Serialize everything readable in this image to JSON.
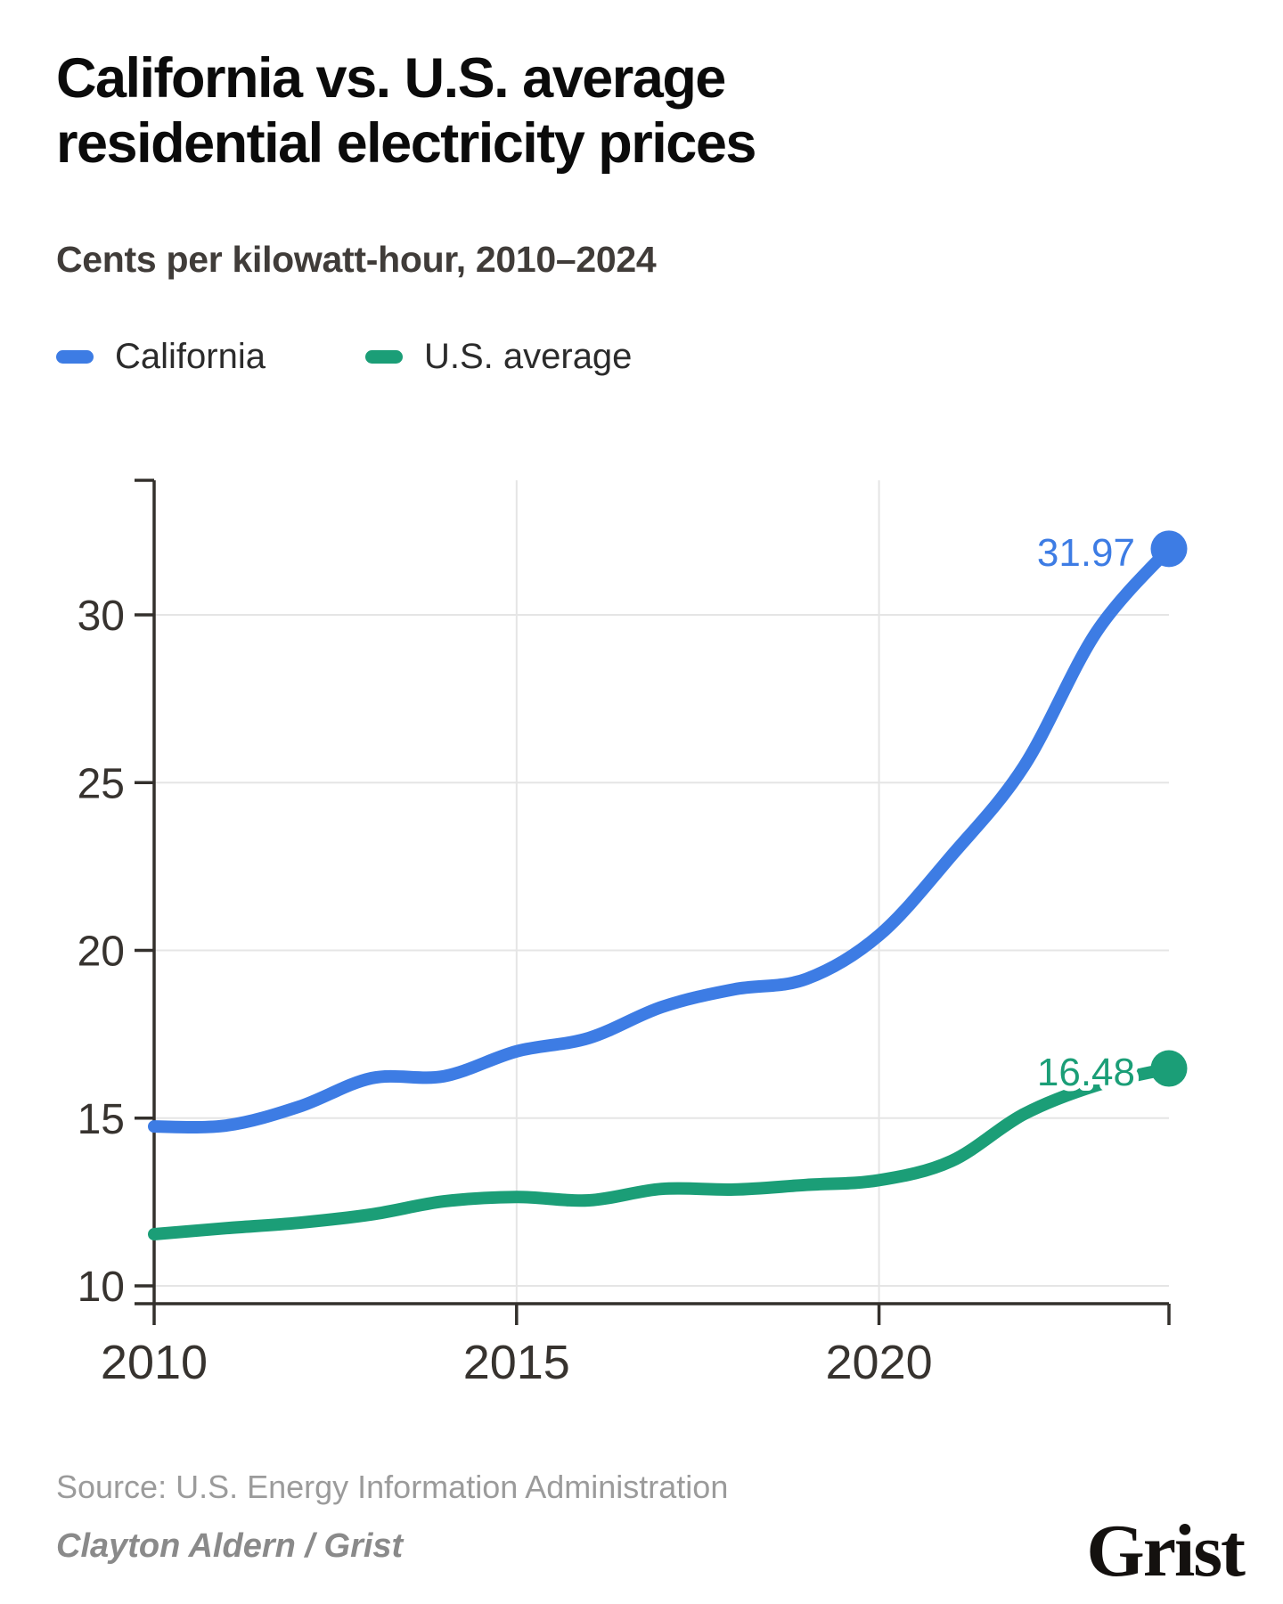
{
  "chart_data": {
    "type": "line",
    "title": "California vs. U.S. average\nresidential electricity prices",
    "subtitle": "Cents per kilowatt-hour, 2010–2024",
    "unit": "cents per kilowatt-hour",
    "x": [
      2010,
      2011,
      2012,
      2013,
      2014,
      2015,
      2016,
      2017,
      2018,
      2019,
      2020,
      2021,
      2022,
      2023,
      2024
    ],
    "series": [
      {
        "name": "California",
        "color": "#3d7ce4",
        "values": [
          14.75,
          14.78,
          15.34,
          16.19,
          16.25,
          16.99,
          17.39,
          18.31,
          18.84,
          19.15,
          20.45,
          22.82,
          25.49,
          29.49,
          31.97
        ],
        "end_label": "31.97"
      },
      {
        "name": "U.S. average",
        "color": "#1b9e77",
        "values": [
          11.54,
          11.72,
          11.88,
          12.13,
          12.52,
          12.65,
          12.55,
          12.89,
          12.87,
          13.01,
          13.15,
          13.72,
          15.12,
          15.98,
          16.48
        ],
        "end_label": "16.48"
      }
    ],
    "ylim": [
      10,
      30
    ],
    "y_ticks": [
      10,
      15,
      20,
      25,
      30
    ],
    "x_ticks": [
      2010,
      2015,
      2020
    ],
    "grid": "both",
    "legend_position": "top-left"
  },
  "footer": {
    "source": "Source: U.S. Energy Information Administration",
    "byline": "Clayton Aldern / Grist",
    "logo": "Grist"
  }
}
